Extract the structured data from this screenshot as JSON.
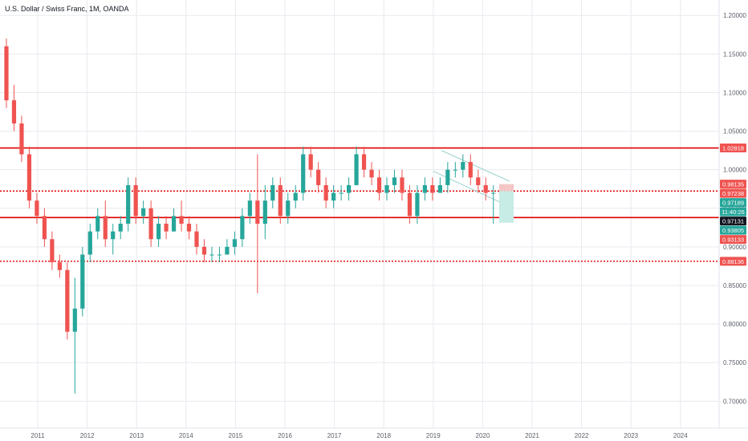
{
  "header": {
    "title": "U.S. Dollar / Swiss Franc, 1M, OANDA"
  },
  "colors": {
    "up": "#26a69a",
    "down": "#ef5350",
    "line": "#e00000",
    "grid": "#e8eaef",
    "axis": "#5d606b"
  },
  "price_labels": [
    {
      "text": "0.98135",
      "price": 0.98135,
      "bg": "#ef5350"
    },
    {
      "text": "0.97238",
      "price": 0.97238,
      "bg": "#ef5350"
    },
    {
      "text": "0.97189",
      "price": 0.97189,
      "bg": "#26a69a"
    },
    {
      "text": "11:40:26",
      "price": 0.96,
      "bg": "#26a69a"
    },
    {
      "text": "0.97131",
      "price": 0.97131,
      "bg": "#131722"
    },
    {
      "text": "0.93805",
      "price": 0.93805,
      "bg": "#26a69a"
    },
    {
      "text": "0.93133",
      "price": 0.93133,
      "bg": "#ef5350"
    },
    {
      "text": "1.02818",
      "price": 1.02818,
      "bg": "#ef5350"
    },
    {
      "text": "0.88136",
      "price": 0.88136,
      "bg": "#ef5350"
    }
  ],
  "chart_data": {
    "type": "candlestick",
    "title": "U.S. Dollar / Swiss Franc, 1M, OANDA",
    "y_ticks": [
      "1.20000",
      "1.15000",
      "1.10000",
      "1.05000",
      "1.00000",
      "0.95000",
      "0.90000",
      "0.85000",
      "0.80000",
      "0.75000",
      "0.70000"
    ],
    "x_ticks": [
      "2011",
      "2012",
      "2013",
      "2014",
      "2015",
      "2016",
      "2017",
      "2018",
      "2019",
      "2020",
      "2021",
      "2022",
      "2023",
      "2024"
    ],
    "ylim": [
      0.665,
      1.22
    ],
    "horizontal_lines": [
      {
        "price": 1.02818,
        "style": "solid"
      },
      {
        "price": 0.97238,
        "style": "dotted"
      },
      {
        "price": 0.93805,
        "style": "solid"
      },
      {
        "price": 0.88136,
        "style": "dotted"
      }
    ],
    "candles": [
      [
        1.16,
        1.17,
        1.08,
        1.09
      ],
      [
        1.09,
        1.11,
        1.05,
        1.06
      ],
      [
        1.06,
        1.07,
        1.01,
        1.02
      ],
      [
        1.02,
        1.03,
        0.95,
        0.96
      ],
      [
        0.96,
        0.97,
        0.93,
        0.94
      ],
      [
        0.94,
        0.95,
        0.9,
        0.91
      ],
      [
        0.91,
        0.92,
        0.87,
        0.88
      ],
      [
        0.88,
        0.89,
        0.86,
        0.87
      ],
      [
        0.87,
        0.88,
        0.78,
        0.79
      ],
      [
        0.79,
        0.86,
        0.71,
        0.82
      ],
      [
        0.82,
        0.9,
        0.81,
        0.89
      ],
      [
        0.89,
        0.93,
        0.88,
        0.92
      ],
      [
        0.92,
        0.95,
        0.91,
        0.94
      ],
      [
        0.94,
        0.96,
        0.9,
        0.91
      ],
      [
        0.91,
        0.93,
        0.89,
        0.92
      ],
      [
        0.92,
        0.94,
        0.91,
        0.93
      ],
      [
        0.93,
        0.99,
        0.92,
        0.98
      ],
      [
        0.98,
        0.99,
        0.93,
        0.94
      ],
      [
        0.94,
        0.96,
        0.93,
        0.95
      ],
      [
        0.95,
        0.96,
        0.9,
        0.91
      ],
      [
        0.91,
        0.94,
        0.9,
        0.93
      ],
      [
        0.93,
        0.94,
        0.91,
        0.92
      ],
      [
        0.92,
        0.95,
        0.92,
        0.94
      ],
      [
        0.94,
        0.96,
        0.92,
        0.93
      ],
      [
        0.93,
        0.94,
        0.91,
        0.92
      ],
      [
        0.92,
        0.93,
        0.89,
        0.9
      ],
      [
        0.9,
        0.91,
        0.88,
        0.89
      ],
      [
        0.89,
        0.9,
        0.88,
        0.89
      ],
      [
        0.89,
        0.9,
        0.88,
        0.89
      ],
      [
        0.89,
        0.91,
        0.89,
        0.9
      ],
      [
        0.9,
        0.92,
        0.89,
        0.91
      ],
      [
        0.91,
        0.95,
        0.9,
        0.94
      ],
      [
        0.94,
        0.97,
        0.93,
        0.96
      ],
      [
        0.96,
        1.02,
        0.84,
        0.93
      ],
      [
        0.93,
        0.98,
        0.91,
        0.96
      ],
      [
        0.96,
        0.99,
        0.95,
        0.98
      ],
      [
        0.98,
        0.99,
        0.93,
        0.94
      ],
      [
        0.94,
        0.97,
        0.93,
        0.96
      ],
      [
        0.96,
        0.98,
        0.95,
        0.97
      ],
      [
        0.97,
        1.03,
        0.96,
        1.02
      ],
      [
        1.02,
        1.03,
        0.99,
        1.0
      ],
      [
        1.0,
        1.01,
        0.97,
        0.98
      ],
      [
        0.98,
        0.99,
        0.95,
        0.96
      ],
      [
        0.96,
        0.98,
        0.95,
        0.97
      ],
      [
        0.97,
        0.98,
        0.96,
        0.97
      ],
      [
        0.97,
        0.99,
        0.96,
        0.98
      ],
      [
        0.98,
        1.03,
        0.98,
        1.02
      ],
      [
        1.02,
        1.03,
        0.99,
        1.0
      ],
      [
        1.0,
        1.01,
        0.98,
        0.99
      ],
      [
        0.99,
        1.0,
        0.96,
        0.97
      ],
      [
        0.97,
        0.99,
        0.96,
        0.98
      ],
      [
        0.98,
        1.0,
        0.97,
        0.99
      ],
      [
        0.99,
        1.0,
        0.96,
        0.97
      ],
      [
        0.97,
        0.98,
        0.93,
        0.94
      ],
      [
        0.94,
        0.98,
        0.93,
        0.97
      ],
      [
        0.97,
        0.99,
        0.96,
        0.98
      ],
      [
        0.98,
        0.99,
        0.96,
        0.97
      ],
      [
        0.97,
        0.99,
        0.97,
        0.98
      ],
      [
        0.98,
        1.01,
        0.97,
        1.0
      ],
      [
        1.0,
        1.01,
        0.99,
        1.0
      ],
      [
        1.0,
        1.02,
        0.99,
        1.01
      ],
      [
        1.01,
        1.02,
        0.98,
        0.99
      ],
      [
        0.99,
        1.0,
        0.97,
        0.98
      ],
      [
        0.98,
        0.99,
        0.96,
        0.97
      ],
      [
        0.97,
        0.98,
        0.93,
        0.97
      ],
      [
        0.97,
        0.98,
        0.96,
        0.97
      ]
    ]
  }
}
